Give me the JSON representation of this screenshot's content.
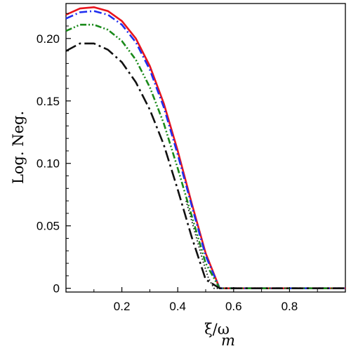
{
  "chart_data": {
    "type": "line",
    "xlabel": "ξ/ω",
    "xlabel_sub": "m",
    "ylabel": "Log. Neg.",
    "xlim": [
      0.0,
      1.0
    ],
    "ylim": [
      -0.003,
      0.228
    ],
    "xticks": [
      0.2,
      0.4,
      0.6,
      0.8
    ],
    "yticks": [
      0,
      0.05,
      0.1,
      0.15,
      0.2
    ],
    "ytick_labels": [
      "0",
      "0.05",
      "0.10",
      "0.15",
      "0.20"
    ],
    "xtick_labels": [
      "0.2",
      "0.4",
      "0.6",
      "0.8"
    ],
    "grid": false,
    "legend": "none",
    "series": [
      {
        "color": "#e8141c",
        "dash": "solid",
        "x": [
          0.0,
          0.05,
          0.1,
          0.15,
          0.2,
          0.25,
          0.3,
          0.35,
          0.4,
          0.45,
          0.5,
          0.55,
          0.6,
          0.7,
          0.8,
          0.9,
          1.0
        ],
        "y": [
          0.219,
          0.224,
          0.225,
          0.222,
          0.214,
          0.2,
          0.178,
          0.148,
          0.11,
          0.068,
          0.028,
          0.0,
          0.0,
          0.0,
          0.0,
          0.0,
          0.0
        ]
      },
      {
        "color": "#1f2ef0",
        "dash": "dashdot",
        "x": [
          0.0,
          0.05,
          0.1,
          0.15,
          0.2,
          0.25,
          0.3,
          0.35,
          0.4,
          0.45,
          0.5,
          0.55,
          0.6,
          0.7,
          0.8,
          0.9,
          1.0
        ],
        "y": [
          0.216,
          0.221,
          0.222,
          0.219,
          0.211,
          0.197,
          0.175,
          0.145,
          0.107,
          0.066,
          0.026,
          0.0,
          0.0,
          0.0,
          0.0,
          0.0,
          0.0
        ]
      },
      {
        "color": "#1a8a1a",
        "dash": "dashdotdot",
        "x": [
          0.0,
          0.05,
          0.1,
          0.15,
          0.2,
          0.25,
          0.3,
          0.35,
          0.4,
          0.45,
          0.5,
          0.55,
          0.6,
          0.7,
          0.8,
          0.9,
          1.0
        ],
        "y": [
          0.206,
          0.211,
          0.211,
          0.207,
          0.198,
          0.183,
          0.161,
          0.132,
          0.096,
          0.058,
          0.02,
          0.0,
          0.0,
          0.0,
          0.0,
          0.0,
          0.0
        ]
      },
      {
        "color": "#111111",
        "dash": "longdashdot",
        "x": [
          0.0,
          0.05,
          0.1,
          0.15,
          0.2,
          0.25,
          0.3,
          0.35,
          0.4,
          0.45,
          0.5,
          0.55,
          0.6,
          0.7,
          0.8,
          0.9,
          1.0
        ],
        "y": [
          0.19,
          0.196,
          0.196,
          0.191,
          0.181,
          0.165,
          0.143,
          0.115,
          0.079,
          0.041,
          0.007,
          0.0,
          0.0,
          0.0,
          0.0,
          0.0,
          0.0
        ]
      },
      {
        "color": "#111111",
        "dash": "dotted",
        "x": [
          0.43,
          0.45,
          0.47,
          0.49,
          0.51,
          0.53,
          0.55
        ],
        "y": [
          0.07,
          0.054,
          0.038,
          0.022,
          0.008,
          0.0,
          0.0
        ]
      }
    ]
  }
}
